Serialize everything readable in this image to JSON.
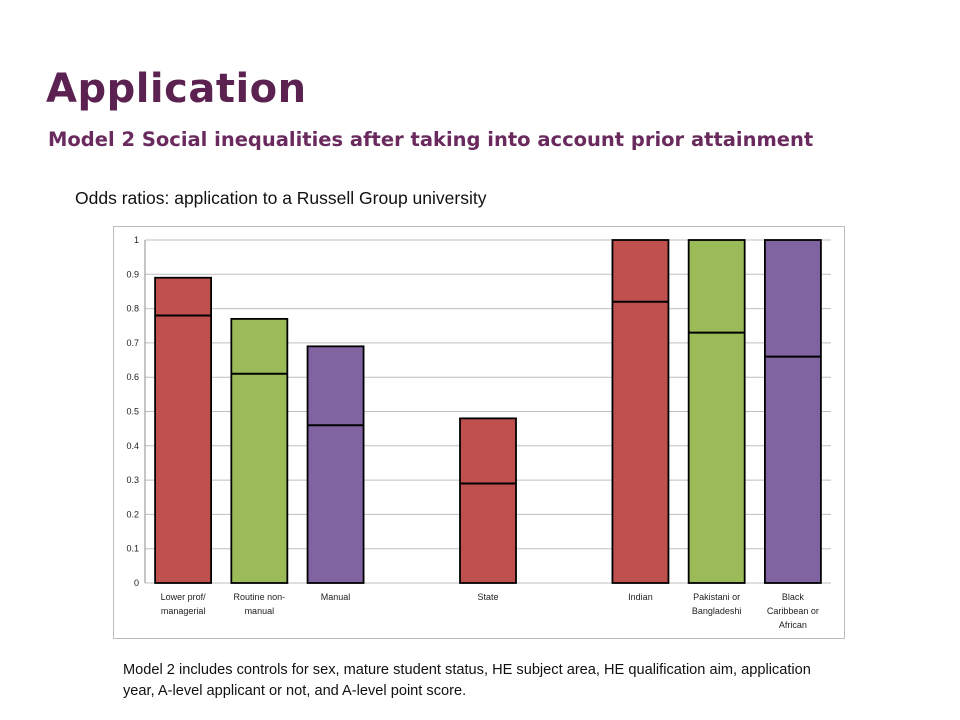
{
  "header": {
    "title": "Application",
    "subtitle": "Model 2 Social inequalities after taking into account prior attainment"
  },
  "chart_caption": "Odds ratios: application to a Russell Group university",
  "note": "Model 2 includes controls for sex, mature student status, HE subject area, HE qualification aim, application year, A-level applicant or not, and A-level point score.",
  "colors": {
    "red": "#c0504d",
    "green": "#9bbb59",
    "purple": "#8064a2",
    "grid": "#bfbfbf"
  },
  "chart_data": {
    "type": "bar",
    "ylim": [
      0,
      1
    ],
    "yticks": [
      "0",
      "0.1",
      "0.2",
      "0.3",
      "0.4",
      "0.5",
      "0.6",
      "0.7",
      "0.8",
      "0.9",
      "1"
    ],
    "grid": true,
    "categories": [
      {
        "label": [
          "Lower prof/",
          "managerial"
        ],
        "top": 0.89,
        "marker": 0.78,
        "color": "red"
      },
      {
        "label": [
          "Routine non-",
          "manual"
        ],
        "top": 0.77,
        "marker": 0.61,
        "color": "green"
      },
      {
        "label": [
          "Manual"
        ],
        "top": 0.69,
        "marker": 0.46,
        "color": "purple"
      },
      {
        "label": [],
        "top": null,
        "marker": null,
        "color": null
      },
      {
        "label": [
          "State"
        ],
        "top": 0.48,
        "marker": 0.29,
        "color": "red"
      },
      {
        "label": [],
        "top": null,
        "marker": null,
        "color": null
      },
      {
        "label": [
          "Indian"
        ],
        "top": 1.0,
        "marker": 0.82,
        "color": "red"
      },
      {
        "label": [
          "Pakistani or",
          "Bangladeshi"
        ],
        "top": 1.0,
        "marker": 0.73,
        "color": "green"
      },
      {
        "label": [
          "Black",
          "Caribbean or",
          "African"
        ],
        "top": 1.0,
        "marker": 0.66,
        "color": "purple"
      }
    ]
  }
}
